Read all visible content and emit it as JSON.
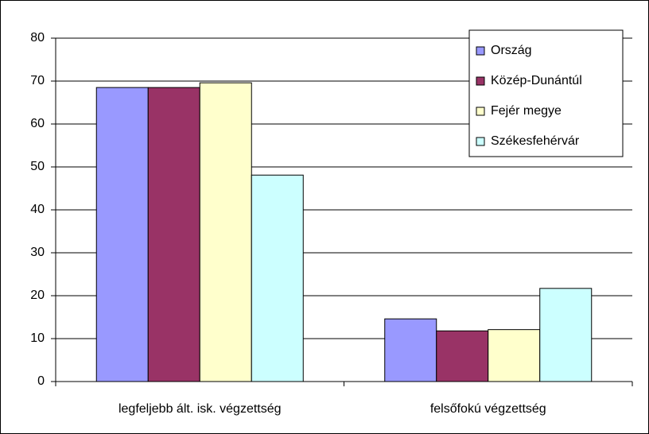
{
  "chart_data": {
    "type": "bar",
    "categories": [
      "legfeljebb ált. isk. végzettség",
      "felsőfokú végzettség"
    ],
    "series": [
      {
        "name": "Ország",
        "color": "#9999ff",
        "values": [
          68.5,
          14.6
        ]
      },
      {
        "name": "Közép-Dunántúl",
        "color": "#993366",
        "values": [
          68.5,
          11.8
        ]
      },
      {
        "name": "Fejér megye",
        "color": "#ffffcc",
        "values": [
          69.6,
          12.1
        ]
      },
      {
        "name": "Székesfehérvár",
        "color": "#ccffff",
        "values": [
          48.1,
          21.7
        ]
      }
    ],
    "ylim": [
      0,
      80
    ],
    "yticks": [
      0,
      10,
      20,
      30,
      40,
      50,
      60,
      70,
      80
    ],
    "grid": true,
    "legend": "top-right"
  }
}
